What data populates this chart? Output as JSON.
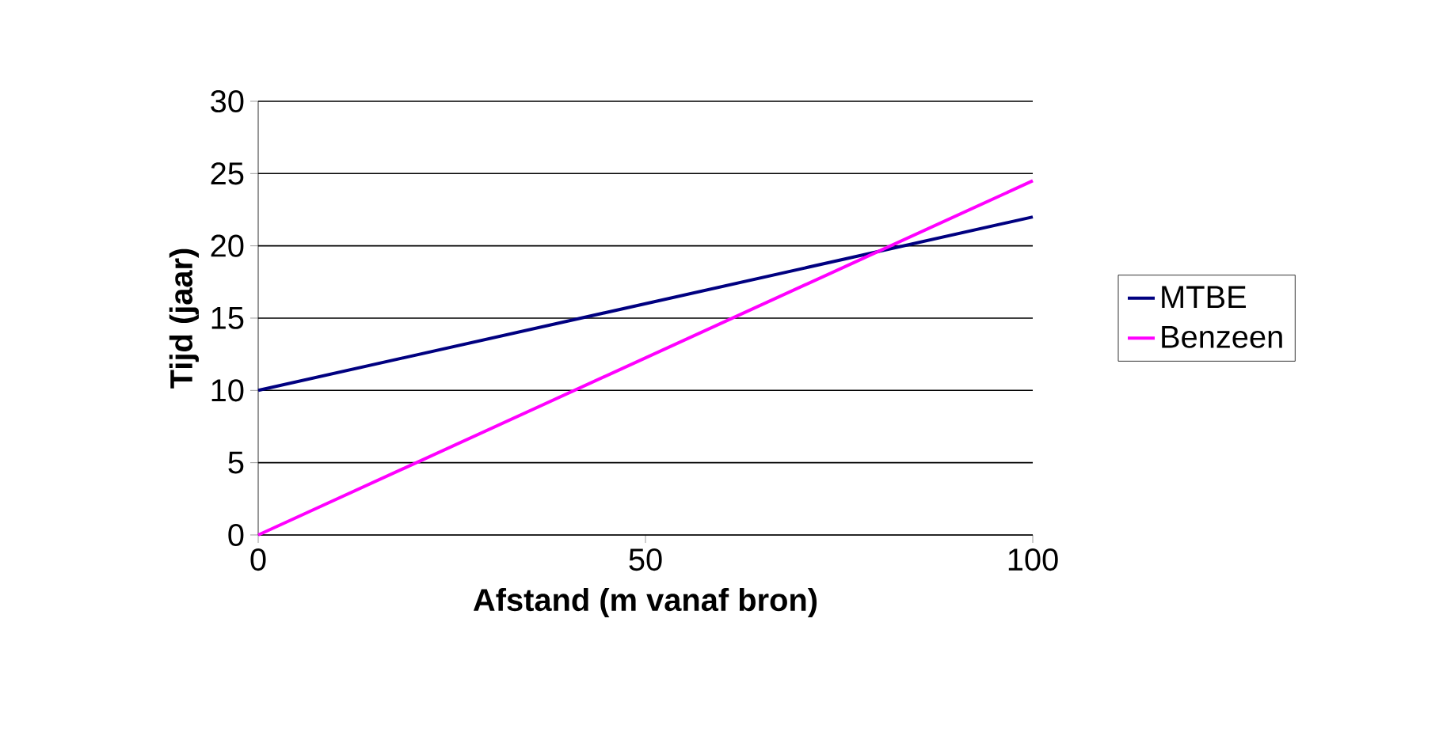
{
  "chart_data": {
    "type": "line",
    "xlabel": "Afstand (m vanaf bron)",
    "ylabel": "Tijd (jaar)",
    "x": [
      0,
      100
    ],
    "series": [
      {
        "name": "MTBE",
        "color": "#000080",
        "values": [
          10,
          22
        ]
      },
      {
        "name": "Benzeen",
        "color": "#ff00ff",
        "values": [
          0,
          24.5
        ]
      }
    ],
    "xlim": [
      0,
      100
    ],
    "xticks": [
      0,
      50,
      100
    ],
    "ylim": [
      0,
      30
    ],
    "yticks": [
      0,
      5,
      10,
      15,
      20,
      25,
      30
    ],
    "grid": "y",
    "legend": "right",
    "marker": "none",
    "line_style": "solid"
  }
}
